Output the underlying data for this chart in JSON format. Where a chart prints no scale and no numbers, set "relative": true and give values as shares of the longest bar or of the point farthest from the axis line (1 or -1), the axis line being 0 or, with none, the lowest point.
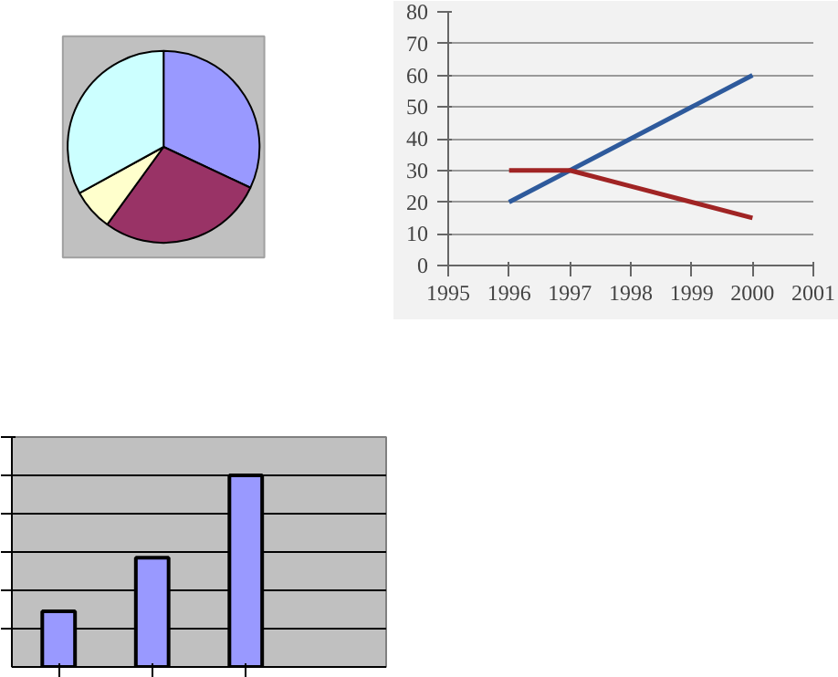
{
  "chart_data": [
    {
      "type": "pie",
      "categories": [
        null,
        null,
        null,
        null
      ],
      "values": [
        32,
        28,
        7,
        33
      ],
      "colors": [
        "#9999ff",
        "#993366",
        "#ffffcc",
        "#ccffff"
      ]
    },
    {
      "type": "line",
      "x": [
        1996,
        1997,
        1998,
        1999,
        2000
      ],
      "xlim": [
        1995,
        2001
      ],
      "xticks": [
        1995,
        1996,
        1997,
        1998,
        1999,
        2000,
        2001
      ],
      "ylim": [
        0,
        80
      ],
      "yticks": [
        0,
        10,
        20,
        30,
        40,
        50,
        60,
        70,
        80
      ],
      "grid": "y",
      "series": [
        {
          "color": "#2e5a9c",
          "values": [
            20,
            30,
            40,
            50,
            60
          ]
        },
        {
          "color": "#a02424",
          "values": [
            30,
            30,
            25,
            20,
            15
          ]
        }
      ]
    },
    {
      "type": "bar",
      "categories": [
        null,
        null,
        null
      ],
      "values": [
        0.29,
        0.57,
        1
      ],
      "color": "#9999ff",
      "relative": true,
      "grid": "y"
    }
  ]
}
